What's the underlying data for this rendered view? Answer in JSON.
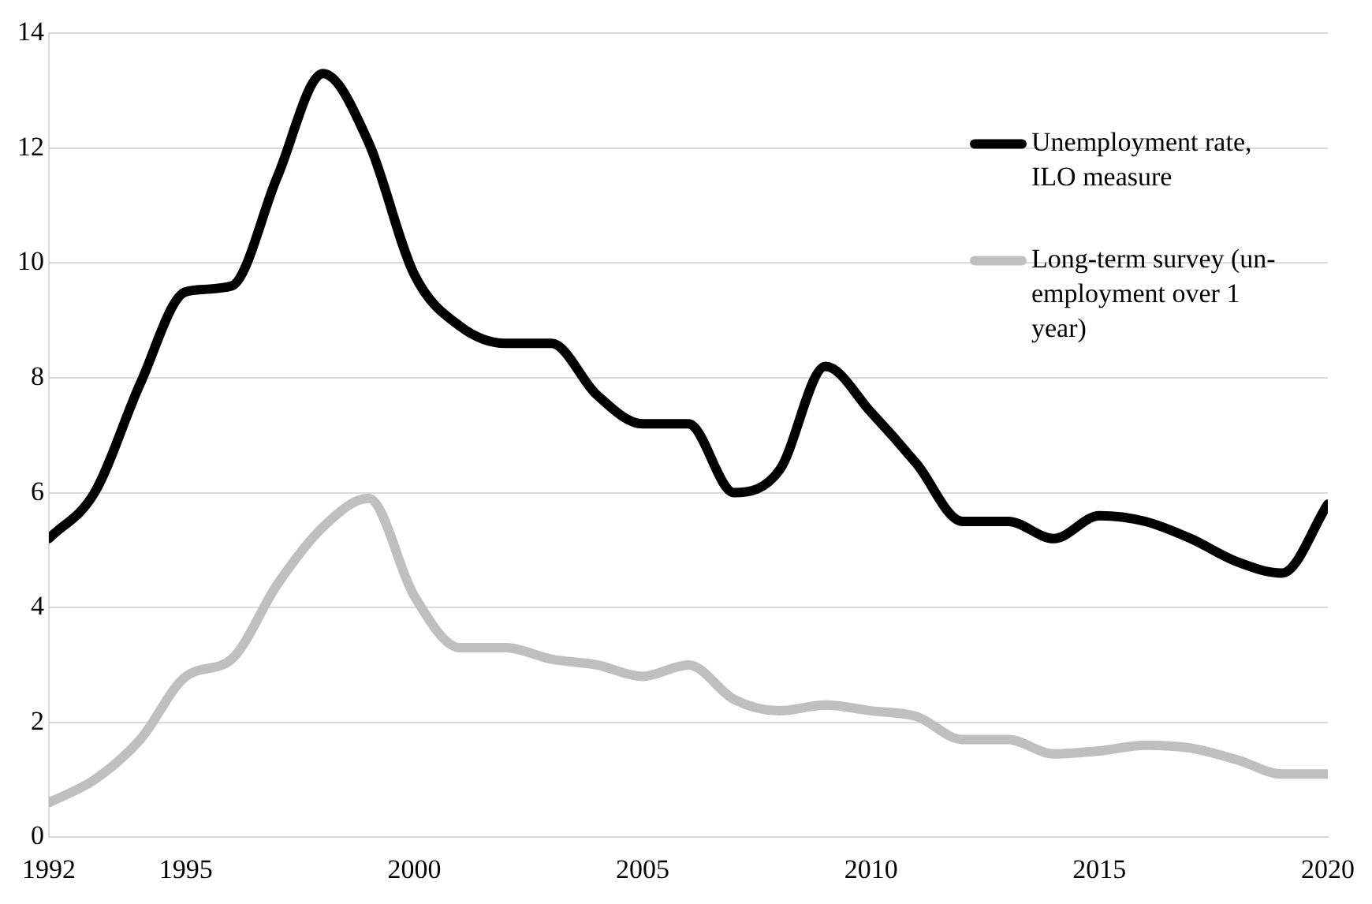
{
  "chart_data": {
    "type": "line",
    "x": [
      1992,
      1993,
      1994,
      1995,
      1996,
      1997,
      1998,
      1999,
      2000,
      2001,
      2002,
      2003,
      2004,
      2005,
      2006,
      2007,
      2008,
      2009,
      2010,
      2011,
      2012,
      2013,
      2014,
      2015,
      2016,
      2017,
      2018,
      2019,
      2020
    ],
    "series": [
      {
        "name": "Unemployment rate, ILO measure",
        "color": "#000000",
        "values": [
          5.2,
          6.0,
          7.9,
          9.5,
          9.6,
          11.5,
          13.3,
          12.1,
          9.8,
          8.9,
          8.6,
          8.6,
          7.7,
          7.2,
          7.2,
          6.0,
          6.4,
          8.2,
          7.4,
          6.5,
          5.5,
          5.5,
          5.2,
          5.6,
          5.5,
          5.2,
          4.8,
          4.6,
          5.8
        ]
      },
      {
        "name": "Long-term survey (un-employment over 1 year)",
        "color": "#bfbfbf",
        "values": [
          0.6,
          1.0,
          1.7,
          2.8,
          3.1,
          4.4,
          5.4,
          5.9,
          4.2,
          3.3,
          3.3,
          3.1,
          3.0,
          2.8,
          3.0,
          2.4,
          2.2,
          2.3,
          2.2,
          2.1,
          1.7,
          1.7,
          1.45,
          1.5,
          1.6,
          1.55,
          1.35,
          1.1,
          1.1
        ]
      }
    ],
    "xlim": [
      1992,
      2020
    ],
    "xticks": [
      1992,
      1995,
      2000,
      2005,
      2010,
      2015,
      2020
    ],
    "ylim": [
      0,
      14
    ],
    "yticks": [
      0,
      2,
      4,
      6,
      8,
      10,
      12,
      14
    ],
    "grid": "y",
    "legend": "top right",
    "marker": "none",
    "line_style": "solid"
  }
}
